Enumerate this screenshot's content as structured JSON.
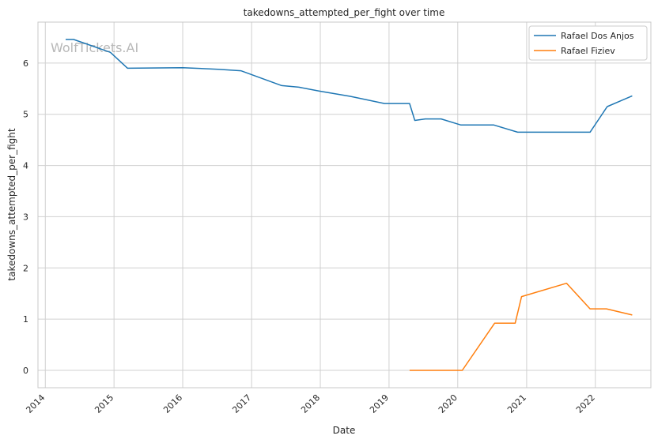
{
  "chart_data": {
    "type": "line",
    "title": "takedowns_attempted_per_fight over time",
    "xlabel": "Date",
    "ylabel": "takedowns_attempted_per_fight",
    "watermark": "WolfTickets.AI",
    "x_tick_labels": [
      "2014",
      "2015",
      "2016",
      "2017",
      "2018",
      "2019",
      "2020",
      "2021",
      "2022"
    ],
    "y_tick_labels": [
      "0",
      "1",
      "2",
      "3",
      "4",
      "5",
      "6"
    ],
    "xlim": [
      "2013-11-23",
      "2022-10-23"
    ],
    "ylim": [
      -0.34,
      6.8
    ],
    "grid": true,
    "legend_position": "top-right",
    "series": [
      {
        "name": "Rafael Dos Anjos",
        "color": "#1f77b4",
        "points": [
          [
            "2014-04-19",
            6.46
          ],
          [
            "2014-06-01",
            6.46
          ],
          [
            "2014-12-13",
            6.21
          ],
          [
            "2015-03-14",
            5.9
          ],
          [
            "2016-01-01",
            5.91
          ],
          [
            "2016-07-07",
            5.88
          ],
          [
            "2016-11-05",
            5.85
          ],
          [
            "2017-06-10",
            5.56
          ],
          [
            "2017-09-09",
            5.53
          ],
          [
            "2017-12-30",
            5.45
          ],
          [
            "2018-06-09",
            5.35
          ],
          [
            "2018-12-08",
            5.21
          ],
          [
            "2019-04-20",
            5.21
          ],
          [
            "2019-05-18",
            4.88
          ],
          [
            "2019-07-13",
            4.91
          ],
          [
            "2019-10-05",
            4.91
          ],
          [
            "2020-01-18",
            4.79
          ],
          [
            "2020-07-11",
            4.79
          ],
          [
            "2020-11-14",
            4.65
          ],
          [
            "2021-12-04",
            4.65
          ],
          [
            "2022-03-05",
            5.15
          ],
          [
            "2022-07-16",
            5.36
          ]
        ]
      },
      {
        "name": "Rafael Fiziev",
        "color": "#ff7f0e",
        "points": [
          [
            "2019-04-20",
            0.0
          ],
          [
            "2020-01-25",
            0.0
          ],
          [
            "2020-07-15",
            0.92
          ],
          [
            "2020-11-01",
            0.92
          ],
          [
            "2020-12-05",
            1.44
          ],
          [
            "2021-08-01",
            1.7
          ],
          [
            "2021-12-04",
            1.2
          ],
          [
            "2022-03-01",
            1.2
          ],
          [
            "2022-07-16",
            1.08
          ]
        ]
      }
    ]
  }
}
